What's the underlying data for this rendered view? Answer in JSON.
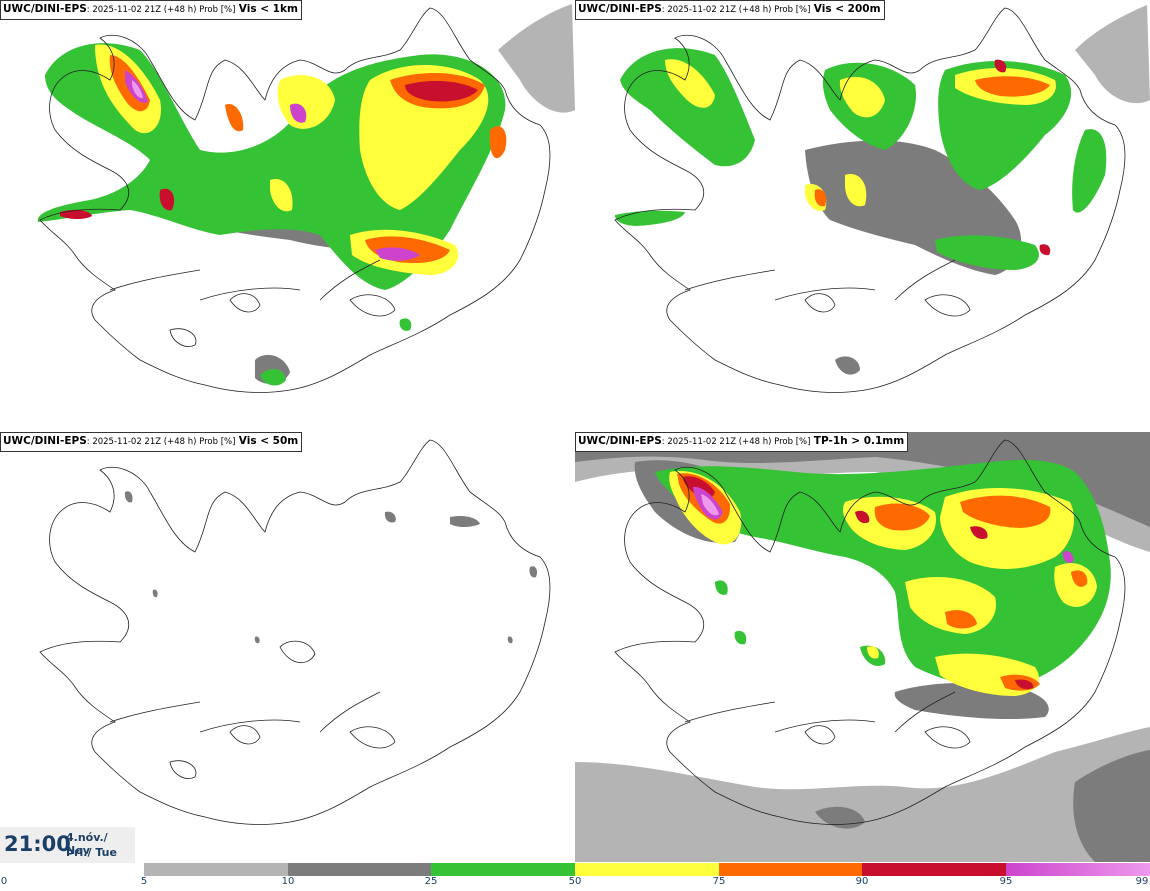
{
  "colors": {
    "p5": "#b4b4b4",
    "p10": "#7c7c7c",
    "p25": "#35c235",
    "p50": "#ffff3c",
    "p75": "#ff6a00",
    "p90": "#c8102e",
    "p95": "#cc44cc",
    "p99": "#ee99ee",
    "text": "#1b3f66",
    "outline": "#222222"
  },
  "panels": [
    {
      "model": "UWC/DINI-EPS",
      "meta": ": 2025-11-02 21Z (+48 h) Prob [%]",
      "variable": "Vis < 1km"
    },
    {
      "model": "UWC/DINI-EPS",
      "meta": ": 2025-11-02 21Z (+48 h) Prob [%]",
      "variable": "Vis < 200m"
    },
    {
      "model": "UWC/DINI-EPS",
      "meta": ": 2025-11-02 21Z (+48 h) Prob [%]",
      "variable": "Vis < 50m"
    },
    {
      "model": "UWC/DINI-EPS",
      "meta": ": 2025-11-02 21Z (+48 h) Prob [%]",
      "variable": "TP-1h > 0.1mm"
    }
  ],
  "valid_time": {
    "time": "21:00",
    "date": "4.nóv./ Nov",
    "weekday": "Þri./ Tue"
  },
  "colorbar": {
    "ticks": [
      "0",
      "5",
      "10",
      "25",
      "50",
      "75",
      "90",
      "95",
      "99"
    ]
  }
}
